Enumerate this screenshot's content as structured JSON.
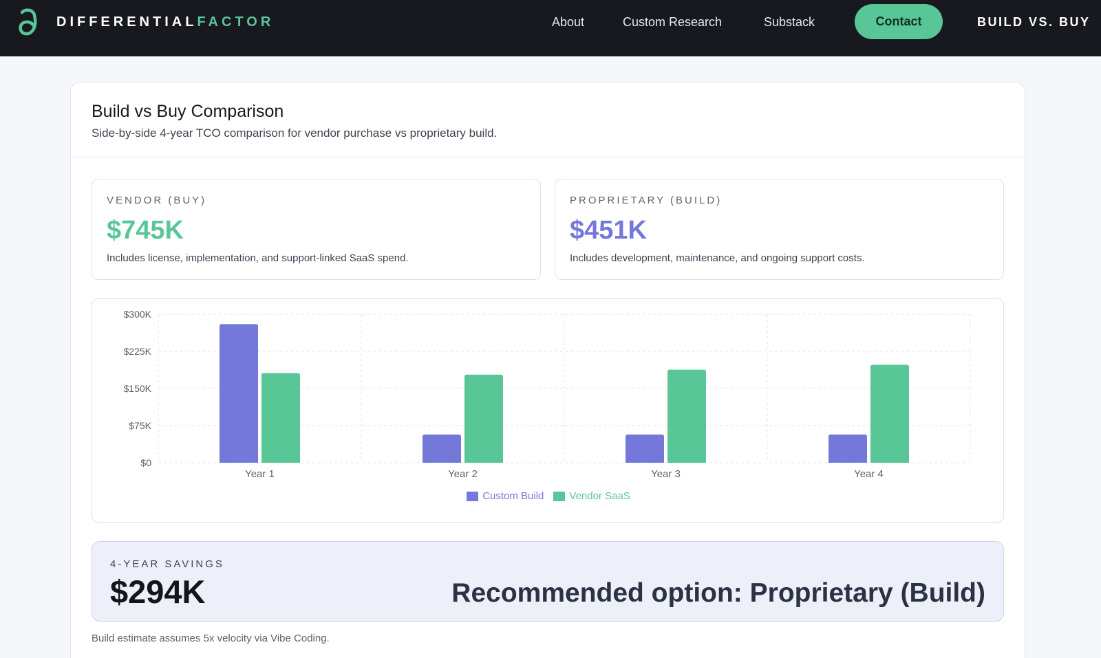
{
  "nav": {
    "brand_first": "DIFFERENTIAL",
    "brand_second": "FACTOR",
    "logo_icon": "differential-icon",
    "links": [
      "About",
      "Custom Research",
      "Substack"
    ],
    "contact": "Contact",
    "right": "BUILD VS. BUY"
  },
  "colors": {
    "accent_green": "#59c697",
    "accent_purple": "#7478d8",
    "nav_bg": "#17191f"
  },
  "panel": {
    "title": "Build vs Buy Comparison",
    "subtitle": "Side-by-side 4-year TCO comparison for vendor purchase vs proprietary build."
  },
  "vendor": {
    "label": "VENDOR (BUY)",
    "value": "$745K",
    "desc": "Includes license, implementation, and support-linked SaaS spend."
  },
  "proprietary": {
    "label": "PROPRIETARY (BUILD)",
    "value": "$451K",
    "desc": "Includes development, maintenance, and ongoing support costs."
  },
  "chart_data": {
    "type": "bar",
    "categories": [
      "Year 1",
      "Year 2",
      "Year 3",
      "Year 4"
    ],
    "series": [
      {
        "name": "Custom Build",
        "color": "#7478d8",
        "values": [
          280,
          57,
          57,
          57
        ]
      },
      {
        "name": "Vendor SaaS",
        "color": "#59c697",
        "values": [
          181,
          178,
          188,
          198
        ]
      }
    ],
    "yticks": [
      0,
      75,
      150,
      225,
      300
    ],
    "ytick_labels": [
      "$0",
      "$75K",
      "$150K",
      "$225K",
      "$300K"
    ],
    "ylim": [
      0,
      300
    ],
    "grid": true,
    "legend": "bottom-center"
  },
  "savings": {
    "label": "4-YEAR SAVINGS",
    "value": "$294K",
    "recommendation": "Recommended option: Proprietary (Build)"
  },
  "footnote": "Build estimate assumes 5x velocity via Vibe Coding."
}
